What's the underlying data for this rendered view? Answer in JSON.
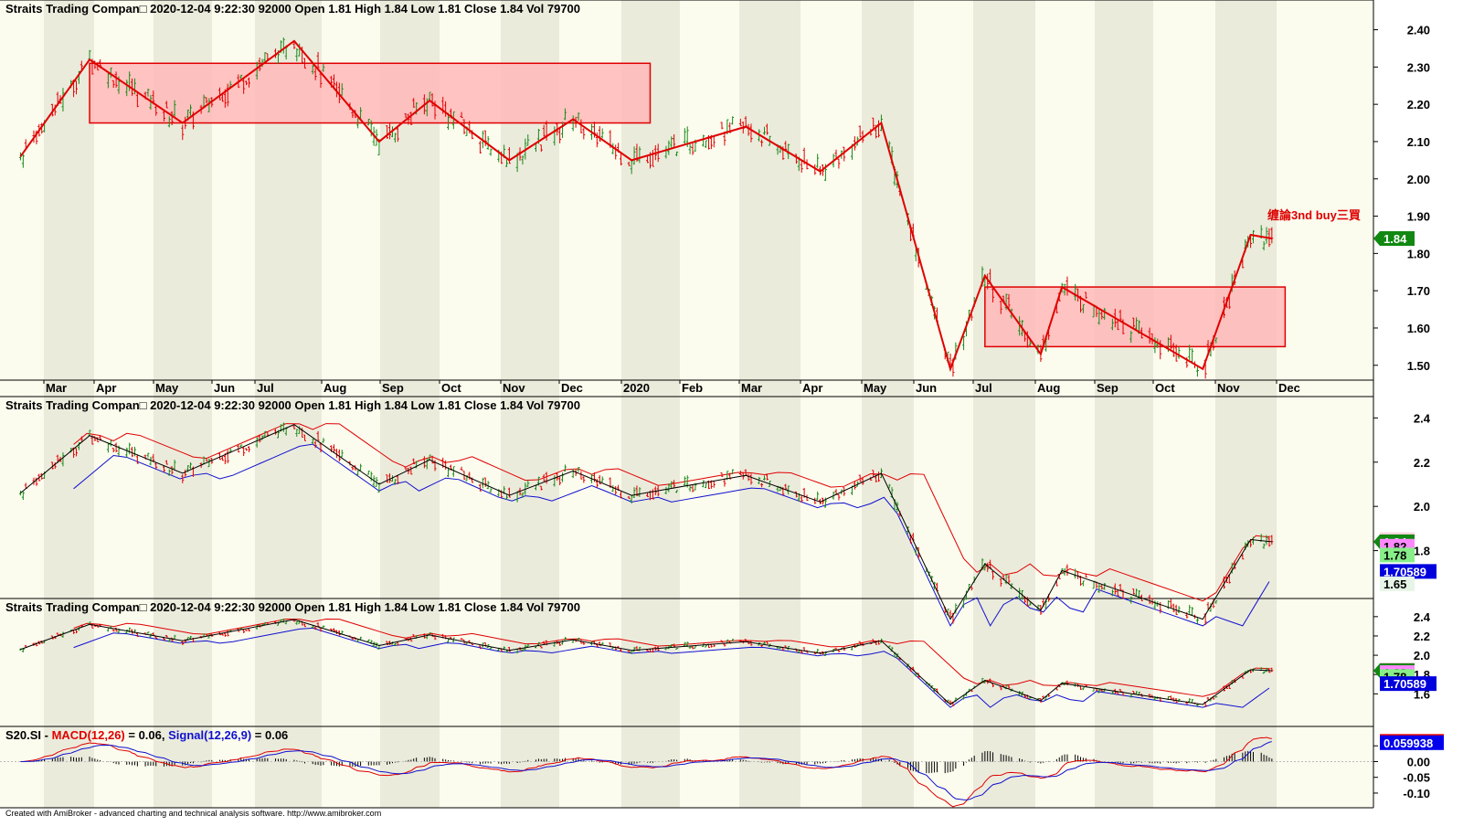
{
  "title": {
    "symbol": "Straits Trading Compan",
    "datetime": "2020-12-04 9:22:30",
    "code": "92000",
    "open": "Open 1.81",
    "high": "High 1.84",
    "low": "Low 1.81",
    "close": "Close 1.84",
    "vol": "Vol 79700"
  },
  "footer": "Created with AmiBroker - advanced charting and technical analysis software. http://www.amibroker.com",
  "annotation": "缠論3nd buy三買",
  "colors": {
    "up": "#1a8a1a",
    "down": "#e00000",
    "band_light": "#fbfbee",
    "band_dark": "#ebebdc",
    "zone_fill": "#ffb8b8",
    "zone_stroke": "#e00000",
    "macd": "#e00000",
    "signal": "#1010d0",
    "lower": "#1010d0"
  },
  "months": [
    "Mar",
    "Apr",
    "May",
    "Jun",
    "Jul",
    "Aug",
    "Sep",
    "Oct",
    "Nov",
    "Dec",
    "2020",
    "Feb",
    "Mar",
    "Apr",
    "May",
    "Jun",
    "Jul",
    "Aug",
    "Sep",
    "Oct",
    "Nov",
    "Dec"
  ],
  "panes": [
    {
      "name": "price",
      "ylim": [
        1.47,
        2.47
      ],
      "ticks": [
        "2.40",
        "2.30",
        "2.20",
        "2.10",
        "2.00",
        "1.90",
        "1.80",
        "1.70",
        "1.60",
        "1.50"
      ],
      "tick_values": [
        2.4,
        2.3,
        2.2,
        2.1,
        2.0,
        1.9,
        1.8,
        1.7,
        1.6,
        1.5
      ],
      "labels": [
        {
          "text": "1.84",
          "value": 1.84,
          "bg": "#118811",
          "fg": "#ffffff"
        }
      ]
    },
    {
      "name": "bands1",
      "ylim": [
        1.6,
        2.48
      ],
      "ticks": [
        "2.4",
        "2.2",
        "2.0",
        "1.8"
      ],
      "tick_values": [
        2.4,
        2.2,
        2.0,
        1.8
      ],
      "labels": [
        {
          "text": "1.85",
          "value": 1.85,
          "bg": "#ffd8e0",
          "fg": "#000"
        },
        {
          "text": "1.84",
          "value": 1.84,
          "bg": "#118811",
          "fg": "#ffffff"
        },
        {
          "text": "1.82",
          "value": 1.82,
          "bg": "#ff88ff",
          "fg": "#000"
        },
        {
          "text": "1.78",
          "value": 1.78,
          "bg": "#88ee88",
          "fg": "#000"
        },
        {
          "text": "1.70589",
          "value": 1.70589,
          "bg": "#0000dd",
          "fg": "#ffffff"
        },
        {
          "text": "1.65",
          "value": 1.65,
          "bg": "#e6f5e6",
          "fg": "#000"
        }
      ]
    },
    {
      "name": "bands2",
      "ylim": [
        1.3,
        2.55
      ],
      "ticks": [
        "2.4",
        "2.2",
        "2.0",
        "1.8",
        "1.6"
      ],
      "tick_values": [
        2.4,
        2.2,
        2.0,
        1.8,
        1.6
      ],
      "labels": [
        {
          "text": "1.85",
          "value": 1.85,
          "bg": "#ffd8e0",
          "fg": "#000"
        },
        {
          "text": "1.84",
          "value": 1.84,
          "bg": "#118811",
          "fg": "#ffffff"
        },
        {
          "text": "1.82",
          "value": 1.82,
          "bg": "#ff88ff",
          "fg": "#000"
        },
        {
          "text": "1.78",
          "value": 1.78,
          "bg": "#88ee88",
          "fg": "#000"
        },
        {
          "text": "1.70589",
          "value": 1.70589,
          "bg": "#0000dd",
          "fg": "#ffffff"
        }
      ]
    },
    {
      "name": "macd",
      "ylim": [
        -0.135,
        0.1
      ],
      "ticks": [
        "0.05",
        "0.00",
        "-0.05",
        "-0.10"
      ],
      "tick_values": [
        0.05,
        0.0,
        -0.05,
        -0.1
      ],
      "labels": [
        {
          "text": "0.064188",
          "value": 0.064188,
          "bg": "#ee0000",
          "fg": "#000"
        },
        {
          "text": "0.059938",
          "value": 0.059938,
          "bg": "#0000ee",
          "fg": "#ffffff"
        }
      ]
    }
  ],
  "macd_header": {
    "symbol": "S20.SI",
    "macd": "MACD(12,26)",
    "macd_val": "= 0.06,",
    "signal": "Signal(12,26,9)",
    "signal_val": "= 0.06"
  },
  "chart_data": {
    "type": "candlestick",
    "title": "Straits Trading Compan",
    "swing_points": [
      {
        "date": "2019-02-20",
        "value": 2.06
      },
      {
        "date": "2019-03-18",
        "value": 2.32
      },
      {
        "date": "2019-04-22",
        "value": 2.15
      },
      {
        "date": "2019-06-03",
        "value": 2.37
      },
      {
        "date": "2019-07-05",
        "value": 2.1
      },
      {
        "date": "2019-07-24",
        "value": 2.21
      },
      {
        "date": "2019-08-23",
        "value": 2.05
      },
      {
        "date": "2019-09-16",
        "value": 2.16
      },
      {
        "date": "2019-10-08",
        "value": 2.05
      },
      {
        "date": "2019-11-20",
        "value": 2.14
      },
      {
        "date": "2019-12-18",
        "value": 2.02
      },
      {
        "date": "2020-01-10",
        "value": 2.15
      },
      {
        "date": "2020-02-05",
        "value": 1.49
      },
      {
        "date": "2020-02-18",
        "value": 1.74
      },
      {
        "date": "2020-03-10",
        "value": 1.53
      },
      {
        "date": "2020-03-18",
        "value": 1.71
      },
      {
        "date": "2020-05-10",
        "value": 1.49
      },
      {
        "date": "2020-05-28",
        "value": 1.85
      },
      {
        "date": "2020-06-05",
        "value": 1.84
      }
    ],
    "zones": [
      {
        "x_start": "2019-03-18",
        "x_end": "2019-10-15",
        "y_low": 2.15,
        "y_high": 2.31
      },
      {
        "x_start": "2020-02-18",
        "x_end": "2020-06-10",
        "y_low": 1.55,
        "y_high": 1.71
      }
    ],
    "last": {
      "open": 1.81,
      "high": 1.84,
      "low": 1.81,
      "close": 1.84,
      "vol": 79700
    },
    "macd": 0.064188,
    "signal": 0.059938
  }
}
